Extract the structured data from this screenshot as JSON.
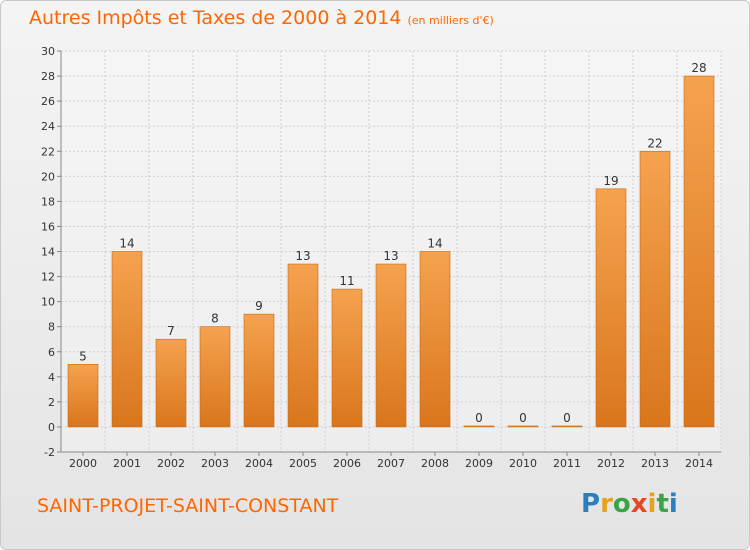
{
  "header": {
    "title": "Autres Impôts et Taxes de 2000 à 2014",
    "subtitle": "(en milliers d'€)"
  },
  "footer": {
    "commune": "SAINT-PROJET-SAINT-CONSTANT",
    "logo_text": "Proxiti"
  },
  "colors": {
    "bar_light": "#f5a04e",
    "bar_dark": "#d9781f",
    "title": "#ff6600"
  },
  "chart_data": {
    "type": "bar",
    "categories": [
      "2000",
      "2001",
      "2002",
      "2003",
      "2004",
      "2005",
      "2006",
      "2007",
      "2008",
      "2009",
      "2010",
      "2011",
      "2012",
      "2013",
      "2014"
    ],
    "values": [
      5,
      14,
      7,
      8,
      9,
      13,
      11,
      13,
      14,
      0,
      0,
      0,
      19,
      22,
      28
    ],
    "ylim": [
      -2,
      30
    ],
    "yticks": [
      -2,
      0,
      2,
      4,
      6,
      8,
      10,
      12,
      14,
      16,
      18,
      20,
      22,
      24,
      26,
      28,
      30
    ],
    "grid": true,
    "data_labels": true
  }
}
